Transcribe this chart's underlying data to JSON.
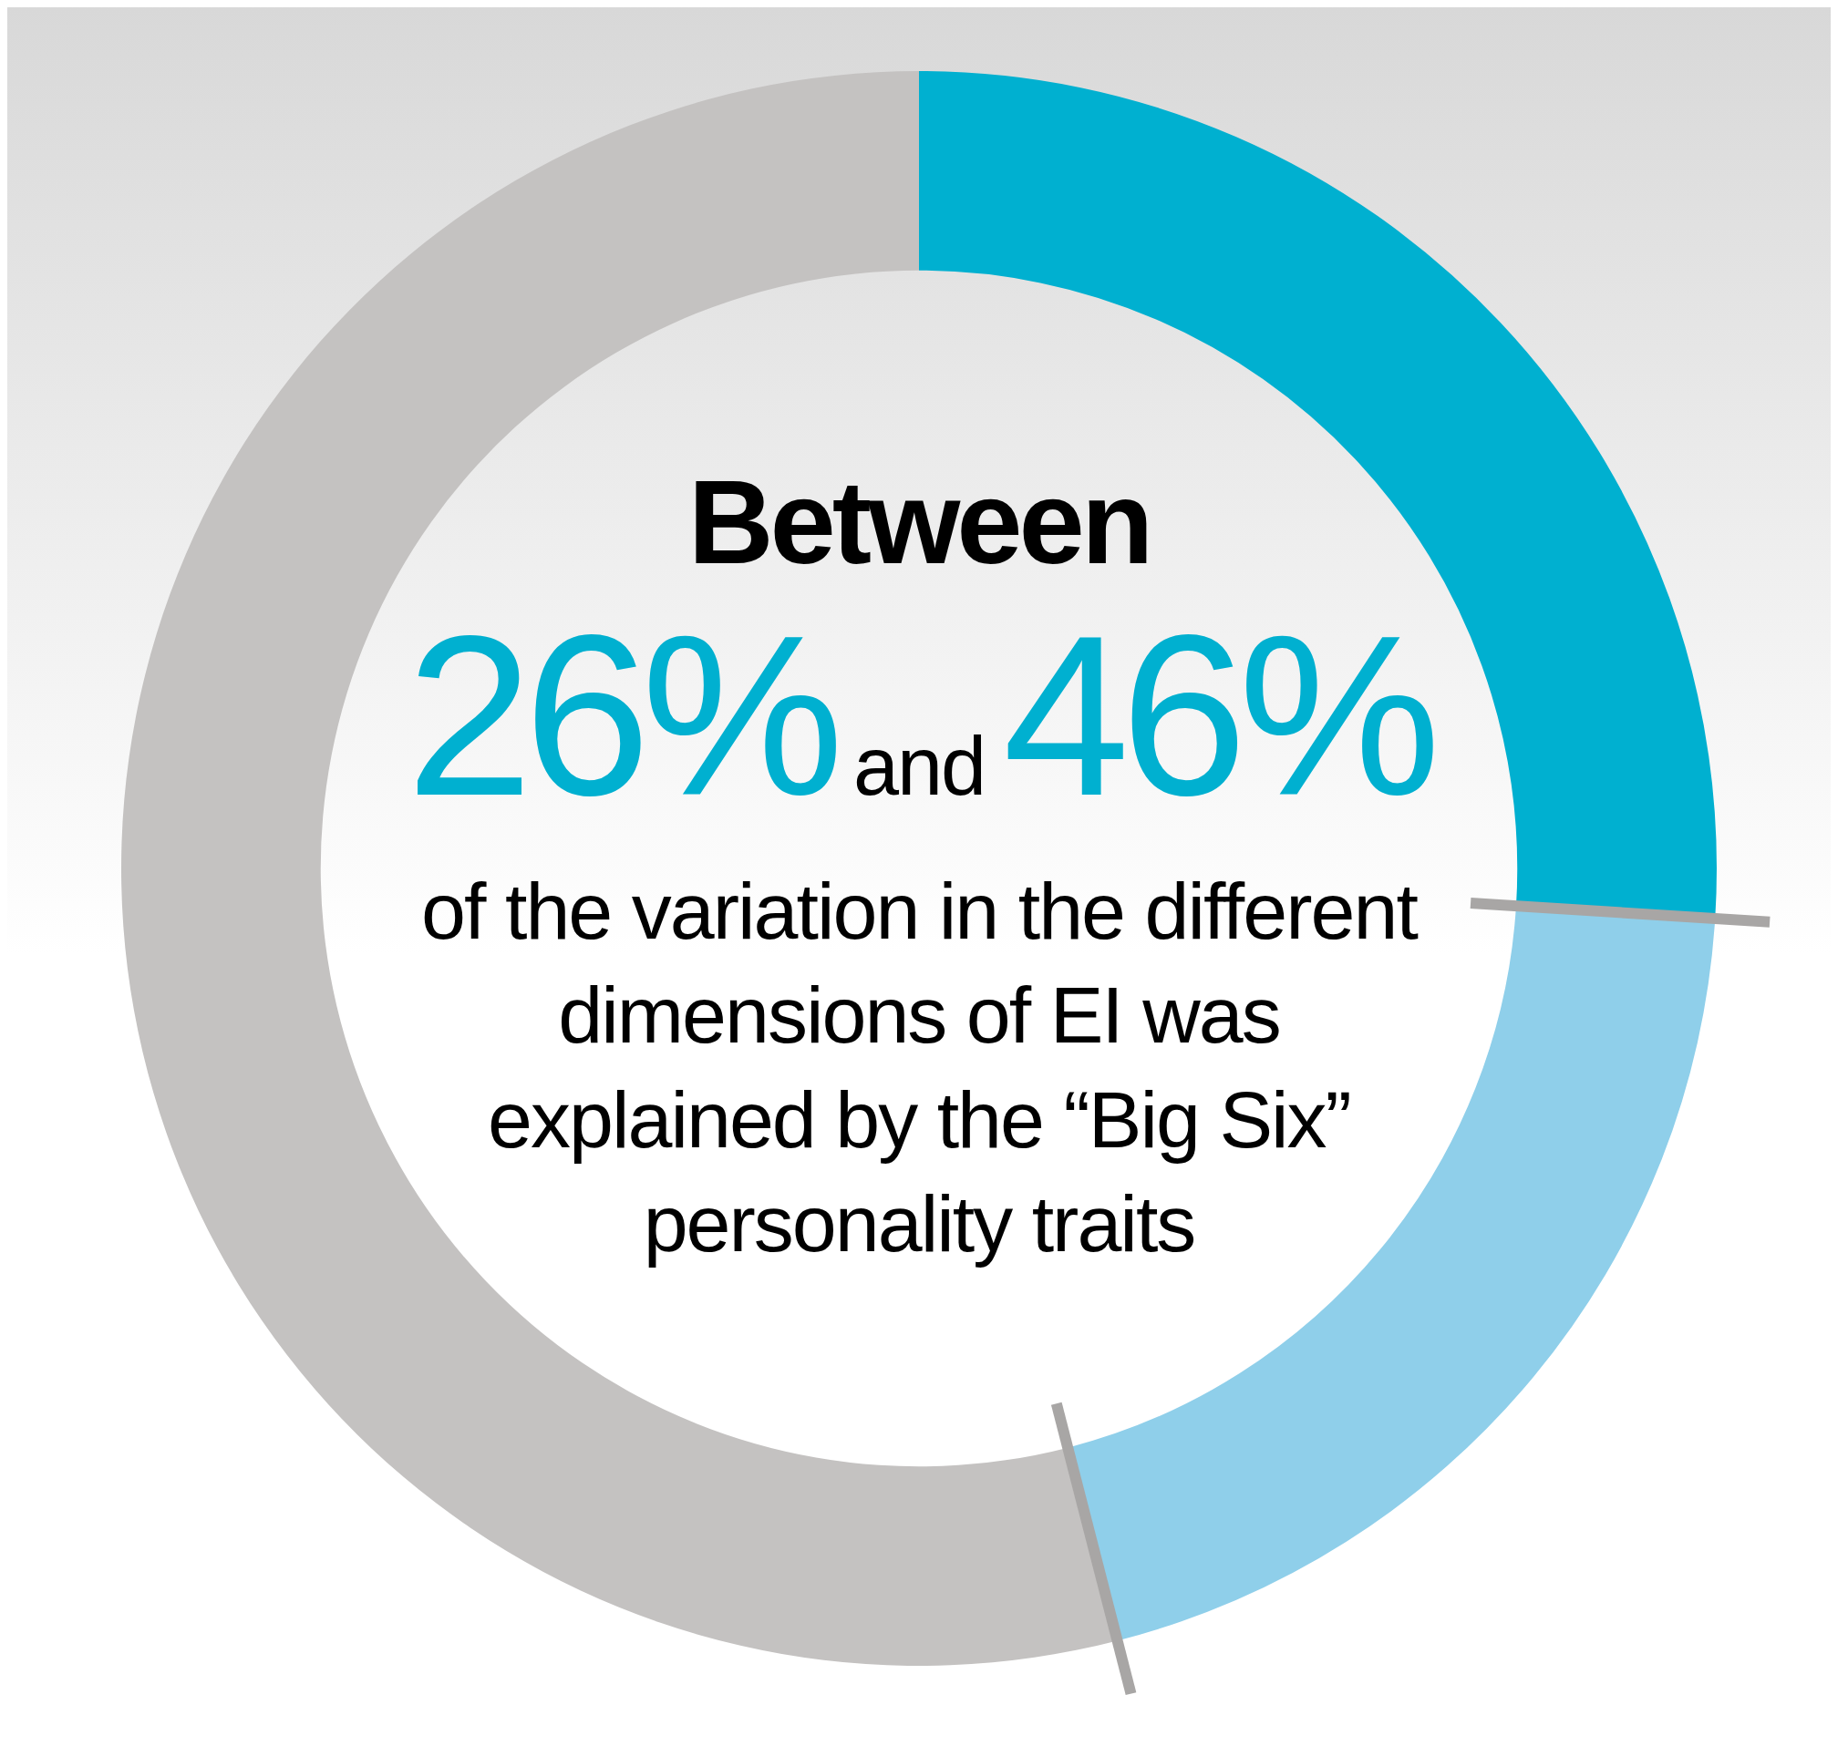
{
  "chart_data": {
    "type": "donut",
    "categories": [
      null,
      null,
      null
    ],
    "values": [
      26,
      20,
      54
    ],
    "colors": [
      "#00b0d0",
      "#8fcfea",
      "#c4c2c1"
    ],
    "annotations": [
      "Between",
      "26%",
      "and",
      "46%",
      "of the variation in the different dimensions of EI was explained by the “Big Six” personality traits"
    ],
    "legend": false
  }
}
